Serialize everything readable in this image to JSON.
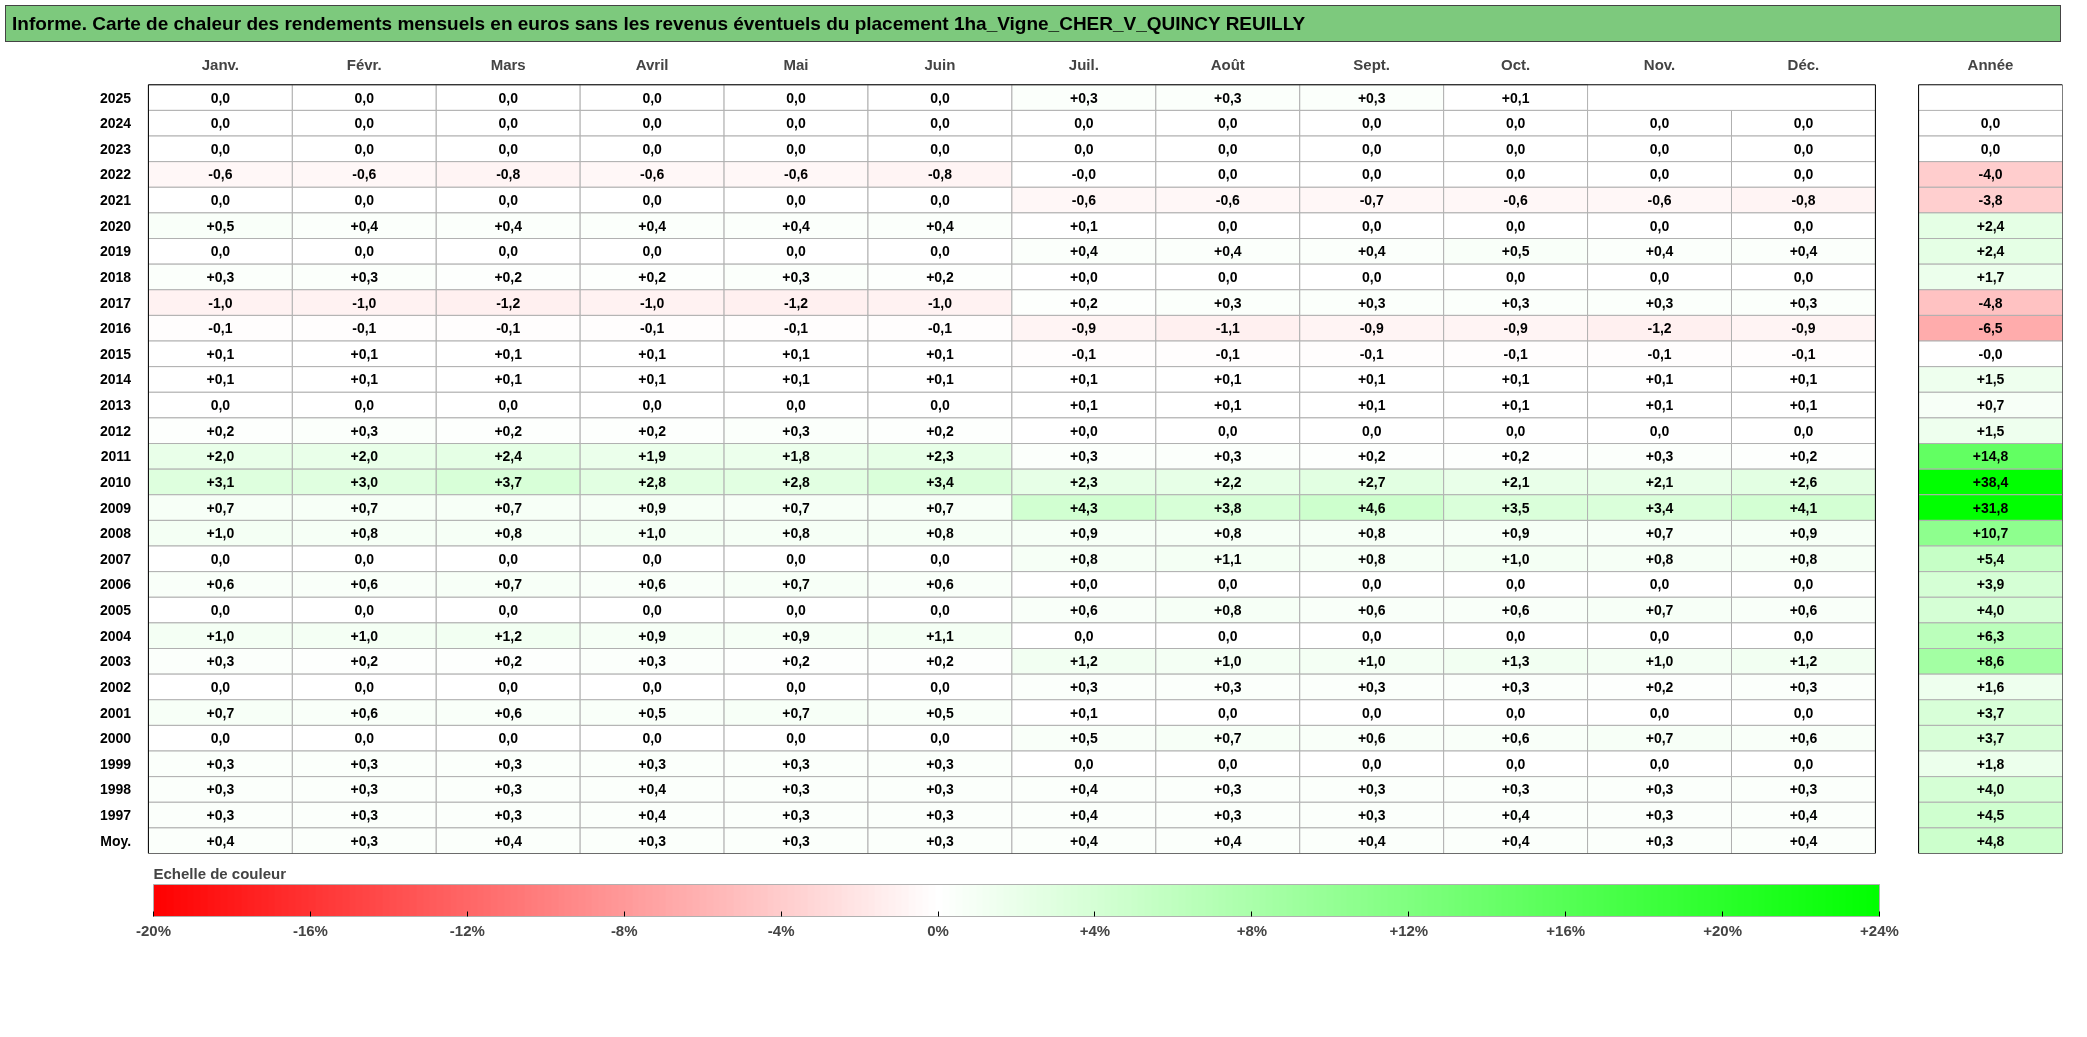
{
  "chart_data": {
    "type": "heatmap",
    "title": "Informe. Carte de chaleur des rendements mensuels en euros sans les revenus éventuels du placement 1ha_Vigne_CHER_V_QUINCY REUILLY",
    "categories": [
      "Janv.",
      "Févr.",
      "Mars",
      "Avril",
      "Mai",
      "Juin",
      "Juil.",
      "Août",
      "Sept.",
      "Oct.",
      "Nov.",
      "Déc.",
      "Année"
    ],
    "y_categories": [
      "2025",
      "2024",
      "2023",
      "2022",
      "2021",
      "2020",
      "2019",
      "2018",
      "2017",
      "2016",
      "2015",
      "2014",
      "2013",
      "2012",
      "2011",
      "2010",
      "2009",
      "2008",
      "2007",
      "2006",
      "2005",
      "2004",
      "2003",
      "2002",
      "2001",
      "2000",
      "1999",
      "1998",
      "1997",
      "Moy."
    ],
    "cells": [
      [
        0,
        0,
        0,
        0,
        0,
        0,
        0.3,
        0.3,
        0.3,
        0.1,
        null,
        null,
        null
      ],
      [
        0,
        0,
        0,
        0,
        0,
        0,
        0,
        0,
        0,
        0,
        0,
        0,
        0
      ],
      [
        0,
        0,
        0,
        0,
        0,
        0,
        0,
        0,
        0,
        0,
        0,
        0,
        0
      ],
      [
        -0.6,
        -0.6,
        -0.8,
        -0.6,
        -0.6,
        -0.8,
        0,
        0,
        0,
        0,
        0,
        0,
        -4.0
      ],
      [
        0,
        0,
        0,
        0,
        0,
        0,
        -0.6,
        -0.6,
        -0.7,
        -0.6,
        -0.6,
        -0.8,
        -3.8
      ],
      [
        0.5,
        0.4,
        0.4,
        0.4,
        0.4,
        0.4,
        0.1,
        0,
        0,
        0,
        0,
        0,
        2.4
      ],
      [
        0,
        0,
        0,
        0,
        0,
        0,
        0.4,
        0.4,
        0.4,
        0.5,
        0.4,
        0.4,
        2.4
      ],
      [
        0.3,
        0.3,
        0.2,
        0.2,
        0.3,
        0.2,
        0,
        0,
        0,
        0,
        0,
        0,
        1.7
      ],
      [
        -1.0,
        -1.0,
        -1.2,
        -1.0,
        -1.2,
        -1.0,
        0.2,
        0.3,
        0.3,
        0.3,
        0.3,
        0.3,
        -4.8
      ],
      [
        -0.1,
        -0.1,
        -0.1,
        -0.1,
        -0.1,
        -0.1,
        -0.9,
        -1.1,
        -0.9,
        -0.9,
        -1.2,
        -0.9,
        -6.5
      ],
      [
        0.1,
        0.1,
        0.1,
        0.1,
        0.1,
        0.1,
        -0.1,
        -0.1,
        -0.1,
        -0.1,
        -0.1,
        -0.1,
        0
      ],
      [
        0.1,
        0.1,
        0.1,
        0.1,
        0.1,
        0.1,
        0.1,
        0.1,
        0.1,
        0.1,
        0.1,
        0.1,
        1.5
      ],
      [
        0,
        0,
        0,
        0,
        0,
        0,
        0.1,
        0.1,
        0.1,
        0.1,
        0.1,
        0.1,
        0.7
      ],
      [
        0.2,
        0.3,
        0.2,
        0.2,
        0.3,
        0.2,
        0,
        0,
        0,
        0,
        0,
        0,
        1.5
      ],
      [
        2.0,
        2.0,
        2.4,
        1.9,
        1.8,
        2.3,
        0.3,
        0.3,
        0.2,
        0.2,
        0.3,
        0.2,
        14.8
      ],
      [
        3.1,
        3.0,
        3.7,
        2.8,
        2.8,
        3.4,
        2.3,
        2.2,
        2.7,
        2.1,
        2.1,
        2.6,
        38.4
      ],
      [
        0.7,
        0.7,
        0.7,
        0.9,
        0.7,
        0.7,
        4.3,
        3.8,
        4.6,
        3.5,
        3.4,
        4.1,
        31.8
      ],
      [
        1.0,
        0.8,
        0.8,
        1.0,
        0.8,
        0.8,
        0.9,
        0.8,
        0.8,
        0.9,
        0.7,
        0.9,
        10.7
      ],
      [
        0,
        0,
        0,
        0,
        0,
        0,
        0.8,
        1.1,
        0.8,
        1.0,
        0.8,
        0.8,
        5.4
      ],
      [
        0.6,
        0.6,
        0.7,
        0.6,
        0.7,
        0.6,
        0,
        0,
        0,
        0,
        0,
        0,
        3.9
      ],
      [
        0,
        0,
        0,
        0,
        0,
        0,
        0.6,
        0.8,
        0.6,
        0.6,
        0.7,
        0.6,
        4.0
      ],
      [
        1.0,
        1.0,
        1.2,
        0.9,
        0.9,
        1.1,
        0,
        0,
        0,
        0,
        0,
        0,
        6.3
      ],
      [
        0.3,
        0.2,
        0.2,
        0.3,
        0.2,
        0.2,
        1.2,
        1.0,
        1.0,
        1.3,
        1.0,
        1.2,
        8.6
      ],
      [
        0,
        0,
        0,
        0,
        0,
        0,
        0.3,
        0.3,
        0.3,
        0.3,
        0.2,
        0.3,
        1.6
      ],
      [
        0.7,
        0.6,
        0.6,
        0.5,
        0.7,
        0.5,
        0.1,
        0,
        0,
        0,
        0,
        0,
        3.7
      ],
      [
        0,
        0,
        0,
        0,
        0,
        0,
        0.5,
        0.7,
        0.6,
        0.6,
        0.7,
        0.6,
        3.7
      ],
      [
        0.3,
        0.3,
        0.3,
        0.3,
        0.3,
        0.3,
        0,
        0,
        0,
        0,
        0,
        0,
        1.8
      ],
      [
        0.3,
        0.3,
        0.3,
        0.4,
        0.3,
        0.3,
        0.4,
        0.3,
        0.3,
        0.3,
        0.3,
        0.3,
        4.0
      ],
      [
        0.3,
        0.3,
        0.3,
        0.4,
        0.3,
        0.3,
        0.4,
        0.3,
        0.3,
        0.4,
        0.3,
        0.4,
        4.5
      ],
      [
        0.4,
        0.3,
        0.4,
        0.3,
        0.3,
        0.3,
        0.4,
        0.4,
        0.4,
        0.4,
        0.3,
        0.4,
        4.8
      ]
    ],
    "cell_labels": [
      [
        "0,0",
        "0,0",
        "0,0",
        "0,0",
        "0,0",
        "0,0",
        "+0,3",
        "+0,3",
        "+0,3",
        "+0,1",
        null,
        null,
        null
      ],
      [
        "0,0",
        "0,0",
        "0,0",
        "0,0",
        "0,0",
        "0,0",
        "0,0",
        "0,0",
        "0,0",
        "0,0",
        "0,0",
        "0,0",
        "0,0"
      ],
      [
        "0,0",
        "0,0",
        "0,0",
        "0,0",
        "0,0",
        "0,0",
        "0,0",
        "0,0",
        "0,0",
        "0,0",
        "0,0",
        "0,0",
        "0,0"
      ],
      [
        "-0,6",
        "-0,6",
        "-0,8",
        "-0,6",
        "-0,6",
        "-0,8",
        "-0,0",
        "0,0",
        "0,0",
        "0,0",
        "0,0",
        "0,0",
        "-4,0"
      ],
      [
        "0,0",
        "0,0",
        "0,0",
        "0,0",
        "0,0",
        "0,0",
        "-0,6",
        "-0,6",
        "-0,7",
        "-0,6",
        "-0,6",
        "-0,8",
        "-3,8"
      ],
      [
        "+0,5",
        "+0,4",
        "+0,4",
        "+0,4",
        "+0,4",
        "+0,4",
        "+0,1",
        "0,0",
        "0,0",
        "0,0",
        "0,0",
        "0,0",
        "+2,4"
      ],
      [
        "0,0",
        "0,0",
        "0,0",
        "0,0",
        "0,0",
        "0,0",
        "+0,4",
        "+0,4",
        "+0,4",
        "+0,5",
        "+0,4",
        "+0,4",
        "+2,4"
      ],
      [
        "+0,3",
        "+0,3",
        "+0,2",
        "+0,2",
        "+0,3",
        "+0,2",
        "+0,0",
        "0,0",
        "0,0",
        "0,0",
        "0,0",
        "0,0",
        "+1,7"
      ],
      [
        "-1,0",
        "-1,0",
        "-1,2",
        "-1,0",
        "-1,2",
        "-1,0",
        "+0,2",
        "+0,3",
        "+0,3",
        "+0,3",
        "+0,3",
        "+0,3",
        "-4,8"
      ],
      [
        "-0,1",
        "-0,1",
        "-0,1",
        "-0,1",
        "-0,1",
        "-0,1",
        "-0,9",
        "-1,1",
        "-0,9",
        "-0,9",
        "-1,2",
        "-0,9",
        "-6,5"
      ],
      [
        "+0,1",
        "+0,1",
        "+0,1",
        "+0,1",
        "+0,1",
        "+0,1",
        "-0,1",
        "-0,1",
        "-0,1",
        "-0,1",
        "-0,1",
        "-0,1",
        "-0,0"
      ],
      [
        "+0,1",
        "+0,1",
        "+0,1",
        "+0,1",
        "+0,1",
        "+0,1",
        "+0,1",
        "+0,1",
        "+0,1",
        "+0,1",
        "+0,1",
        "+0,1",
        "+1,5"
      ],
      [
        "0,0",
        "0,0",
        "0,0",
        "0,0",
        "0,0",
        "0,0",
        "+0,1",
        "+0,1",
        "+0,1",
        "+0,1",
        "+0,1",
        "+0,1",
        "+0,7"
      ],
      [
        "+0,2",
        "+0,3",
        "+0,2",
        "+0,2",
        "+0,3",
        "+0,2",
        "+0,0",
        "0,0",
        "0,0",
        "0,0",
        "0,0",
        "0,0",
        "+1,5"
      ],
      [
        "+2,0",
        "+2,0",
        "+2,4",
        "+1,9",
        "+1,8",
        "+2,3",
        "+0,3",
        "+0,3",
        "+0,2",
        "+0,2",
        "+0,3",
        "+0,2",
        "+14,8"
      ],
      [
        "+3,1",
        "+3,0",
        "+3,7",
        "+2,8",
        "+2,8",
        "+3,4",
        "+2,3",
        "+2,2",
        "+2,7",
        "+2,1",
        "+2,1",
        "+2,6",
        "+38,4"
      ],
      [
        "+0,7",
        "+0,7",
        "+0,7",
        "+0,9",
        "+0,7",
        "+0,7",
        "+4,3",
        "+3,8",
        "+4,6",
        "+3,5",
        "+3,4",
        "+4,1",
        "+31,8"
      ],
      [
        "+1,0",
        "+0,8",
        "+0,8",
        "+1,0",
        "+0,8",
        "+0,8",
        "+0,9",
        "+0,8",
        "+0,8",
        "+0,9",
        "+0,7",
        "+0,9",
        "+10,7"
      ],
      [
        "0,0",
        "0,0",
        "0,0",
        "0,0",
        "0,0",
        "0,0",
        "+0,8",
        "+1,1",
        "+0,8",
        "+1,0",
        "+0,8",
        "+0,8",
        "+5,4"
      ],
      [
        "+0,6",
        "+0,6",
        "+0,7",
        "+0,6",
        "+0,7",
        "+0,6",
        "+0,0",
        "0,0",
        "0,0",
        "0,0",
        "0,0",
        "0,0",
        "+3,9"
      ],
      [
        "0,0",
        "0,0",
        "0,0",
        "0,0",
        "0,0",
        "0,0",
        "+0,6",
        "+0,8",
        "+0,6",
        "+0,6",
        "+0,7",
        "+0,6",
        "+4,0"
      ],
      [
        "+1,0",
        "+1,0",
        "+1,2",
        "+0,9",
        "+0,9",
        "+1,1",
        "0,0",
        "0,0",
        "0,0",
        "0,0",
        "0,0",
        "0,0",
        "+6,3"
      ],
      [
        "+0,3",
        "+0,2",
        "+0,2",
        "+0,3",
        "+0,2",
        "+0,2",
        "+1,2",
        "+1,0",
        "+1,0",
        "+1,3",
        "+1,0",
        "+1,2",
        "+8,6"
      ],
      [
        "0,0",
        "0,0",
        "0,0",
        "0,0",
        "0,0",
        "0,0",
        "+0,3",
        "+0,3",
        "+0,3",
        "+0,3",
        "+0,2",
        "+0,3",
        "+1,6"
      ],
      [
        "+0,7",
        "+0,6",
        "+0,6",
        "+0,5",
        "+0,7",
        "+0,5",
        "+0,1",
        "0,0",
        "0,0",
        "0,0",
        "0,0",
        "0,0",
        "+3,7"
      ],
      [
        "0,0",
        "0,0",
        "0,0",
        "0,0",
        "0,0",
        "0,0",
        "+0,5",
        "+0,7",
        "+0,6",
        "+0,6",
        "+0,7",
        "+0,6",
        "+3,7"
      ],
      [
        "+0,3",
        "+0,3",
        "+0,3",
        "+0,3",
        "+0,3",
        "+0,3",
        "0,0",
        "0,0",
        "0,0",
        "0,0",
        "0,0",
        "0,0",
        "+1,8"
      ],
      [
        "+0,3",
        "+0,3",
        "+0,3",
        "+0,4",
        "+0,3",
        "+0,3",
        "+0,4",
        "+0,3",
        "+0,3",
        "+0,3",
        "+0,3",
        "+0,3",
        "+4,0"
      ],
      [
        "+0,3",
        "+0,3",
        "+0,3",
        "+0,4",
        "+0,3",
        "+0,3",
        "+0,4",
        "+0,3",
        "+0,3",
        "+0,4",
        "+0,3",
        "+0,4",
        "+4,5"
      ],
      [
        "+0,4",
        "+0,3",
        "+0,4",
        "+0,3",
        "+0,3",
        "+0,3",
        "+0,4",
        "+0,4",
        "+0,4",
        "+0,4",
        "+0,3",
        "+0,4",
        "+4,8"
      ]
    ],
    "clabel": "Echelle de couleur",
    "clim": [
      -20,
      24
    ],
    "cticks": [
      {
        "value": -20,
        "label": "-20%"
      },
      {
        "value": -16,
        "label": "-16%"
      },
      {
        "value": -12,
        "label": "-12%"
      },
      {
        "value": -8,
        "label": "-8%"
      },
      {
        "value": -4,
        "label": "-4%"
      },
      {
        "value": 0,
        "label": "0%"
      },
      {
        "value": 4,
        "label": "+4%"
      },
      {
        "value": 8,
        "label": "+8%"
      },
      {
        "value": 12,
        "label": "+12%"
      },
      {
        "value": 16,
        "label": "+16%"
      },
      {
        "value": 20,
        "label": "+20%"
      },
      {
        "value": 24,
        "label": "+24%"
      }
    ]
  }
}
